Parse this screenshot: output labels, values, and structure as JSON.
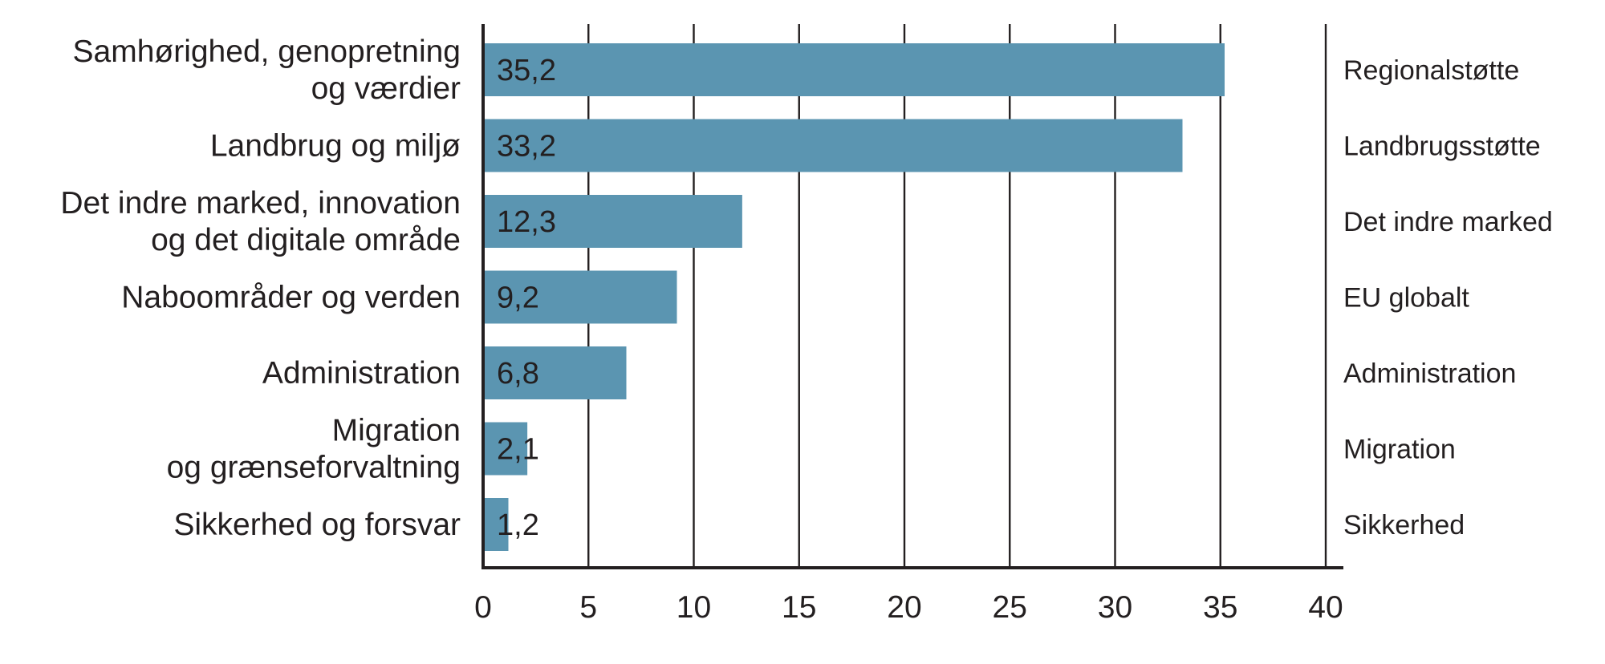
{
  "chart_data": {
    "type": "bar",
    "orientation": "horizontal",
    "categories": [
      [
        "Samhørighed, genopretning",
        "og værdier"
      ],
      [
        "Landbrug og miljø"
      ],
      [
        "Det indre marked, innovation",
        "og det digitale område"
      ],
      [
        "Naboområder og verden"
      ],
      [
        "Administration"
      ],
      [
        "Migration",
        "og grænseforvaltning"
      ],
      [
        "Sikkerhed og forsvar"
      ]
    ],
    "values": [
      35.2,
      33.2,
      12.3,
      9.2,
      6.8,
      2.1,
      1.2
    ],
    "value_labels": [
      "35,2",
      "33,2",
      "12,3",
      "9,2",
      "6,8",
      "2,1",
      "1,2"
    ],
    "right_labels": [
      "Regionalstøtte",
      "Landbrugsstøtte",
      "Det indre marked",
      "EU globalt",
      "Administration",
      "Migration",
      "Sikkerhed"
    ],
    "x_ticks": [
      0,
      5,
      10,
      15,
      20,
      25,
      30,
      35,
      40
    ],
    "x_tick_labels": [
      "0",
      "5",
      "10",
      "15",
      "20",
      "25",
      "30",
      "35",
      "40"
    ],
    "xlim": [
      0,
      40
    ],
    "grid": "vertical",
    "bar_color": "#5b95b1",
    "text_color": "#231f20",
    "title": "",
    "xlabel": "",
    "ylabel": ""
  }
}
